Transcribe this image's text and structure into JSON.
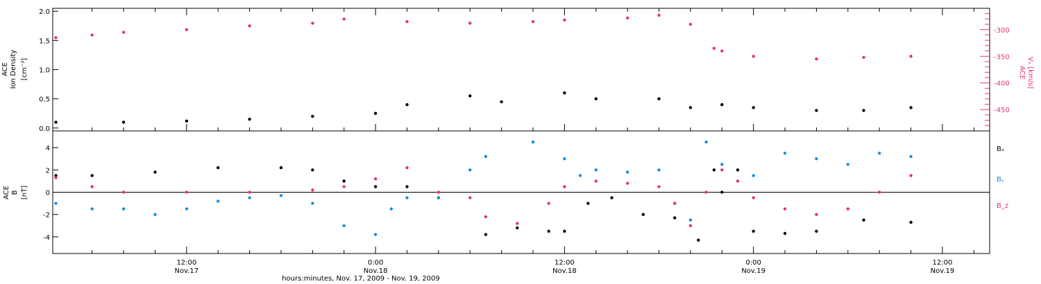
{
  "colors": {
    "black": "#000000",
    "pink": "#e8336a",
    "blue": "#1a8de0"
  },
  "x_axis": {
    "title": "hours:minutes, Nov. 17, 2009 - Nov. 19, 2009",
    "ticks": [
      {
        "time": "12:00",
        "day": "Nov.17",
        "hour": 12
      },
      {
        "time": "0:00",
        "day": "Nov.18",
        "hour": 24
      },
      {
        "time": "12:00",
        "day": "Nov.18",
        "hour": 36
      },
      {
        "time": "0:00",
        "day": "Nov.19",
        "hour": 48
      },
      {
        "time": "12:00",
        "day": "Nov.19",
        "hour": 60
      }
    ]
  },
  "chart_data": [
    {
      "type": "scatter",
      "panel": "top",
      "xlim_hours": [
        3.5,
        63
      ],
      "left_axis": {
        "label_line1": "ACE",
        "label_line2": "Ion Density",
        "unit": "[cm⁻³]",
        "ylim": [
          -0.05,
          2.05
        ],
        "ticks": [
          "0.0",
          "0.5",
          "1.0",
          "1.5",
          "2.0"
        ]
      },
      "right_axis": {
        "label_line1": "ACE",
        "label": "Vₓ [km/s]",
        "ylim": [
          -490,
          -260
        ],
        "ticks": [
          "-300",
          "-350",
          "-400",
          "-450"
        ]
      },
      "series": [
        {
          "color": "black",
          "axis": "left",
          "points": [
            [
              3.7,
              0.1
            ],
            [
              8,
              0.1
            ],
            [
              12,
              0.12
            ],
            [
              16,
              0.15
            ],
            [
              20,
              0.2
            ],
            [
              24,
              0.25
            ],
            [
              26,
              0.4
            ],
            [
              30,
              0.55
            ],
            [
              32,
              0.45
            ],
            [
              36,
              0.6
            ],
            [
              38,
              0.5
            ],
            [
              42,
              0.5
            ],
            [
              44,
              0.35
            ],
            [
              46,
              0.4
            ],
            [
              48,
              0.35
            ],
            [
              52,
              0.3
            ],
            [
              55,
              0.3
            ],
            [
              58,
              0.35
            ]
          ]
        },
        {
          "color": "pink",
          "axis": "right",
          "points": [
            [
              3.7,
              -315
            ],
            [
              6,
              -310
            ],
            [
              8,
              -305
            ],
            [
              12,
              -300
            ],
            [
              16,
              -293
            ],
            [
              20,
              -288
            ],
            [
              22,
              -280
            ],
            [
              26,
              -285
            ],
            [
              30,
              -288
            ],
            [
              34,
              -285
            ],
            [
              36,
              -282
            ],
            [
              40,
              -278
            ],
            [
              42,
              -273
            ],
            [
              44,
              -290
            ],
            [
              45.5,
              -335
            ],
            [
              46,
              -340
            ],
            [
              48,
              -350
            ],
            [
              52,
              -355
            ],
            [
              55,
              -352
            ],
            [
              58,
              -350
            ]
          ]
        }
      ]
    },
    {
      "type": "scatter",
      "panel": "bottom",
      "xlim_hours": [
        3.5,
        63
      ],
      "left_axis": {
        "label_line1": "ACE",
        "label_line2": "B",
        "unit": "[nT]",
        "ylim": [
          -5.5,
          5.5
        ],
        "ticks": [
          "-4",
          "-2",
          "0",
          "2",
          "4"
        ]
      },
      "series": [
        {
          "name": "Bₓ",
          "color": "black",
          "points": [
            [
              3.7,
              1.5
            ],
            [
              6,
              1.5
            ],
            [
              10,
              1.8
            ],
            [
              14,
              2.2
            ],
            [
              18,
              2.2
            ],
            [
              20,
              2.0
            ],
            [
              22,
              1.0
            ],
            [
              24,
              0.5
            ],
            [
              26,
              0.5
            ],
            [
              28,
              -0.5
            ],
            [
              31,
              -3.8
            ],
            [
              33,
              -3.2
            ],
            [
              35,
              -3.5
            ],
            [
              36,
              -3.5
            ],
            [
              37.5,
              -1.0
            ],
            [
              39,
              -0.5
            ],
            [
              41,
              -2.0
            ],
            [
              43,
              -2.3
            ],
            [
              44.5,
              -4.3
            ],
            [
              45.5,
              2.0
            ],
            [
              46,
              0
            ],
            [
              47,
              2.0
            ],
            [
              48,
              -3.5
            ],
            [
              50,
              -3.7
            ],
            [
              52,
              -3.5
            ],
            [
              55,
              -2.5
            ],
            [
              58,
              -2.7
            ]
          ]
        },
        {
          "name": "Bᵧ",
          "color": "blue",
          "points": [
            [
              3.7,
              -1.0
            ],
            [
              6,
              -1.5
            ],
            [
              8,
              -1.5
            ],
            [
              10,
              -2.0
            ],
            [
              12,
              -1.5
            ],
            [
              14,
              -0.8
            ],
            [
              16,
              -0.5
            ],
            [
              18,
              -0.3
            ],
            [
              20,
              -1.0
            ],
            [
              22,
              -3.0
            ],
            [
              24,
              -3.8
            ],
            [
              25,
              -1.5
            ],
            [
              26,
              -0.5
            ],
            [
              28,
              -0.5
            ],
            [
              30,
              2.0
            ],
            [
              31,
              3.2
            ],
            [
              34,
              4.5
            ],
            [
              36,
              3.0
            ],
            [
              37,
              1.5
            ],
            [
              38,
              2.0
            ],
            [
              40,
              1.8
            ],
            [
              42,
              2.0
            ],
            [
              43,
              -1.0
            ],
            [
              44,
              -2.5
            ],
            [
              45,
              4.5
            ],
            [
              46,
              2.5
            ],
            [
              47,
              1.0
            ],
            [
              48,
              1.5
            ],
            [
              50,
              3.5
            ],
            [
              52,
              3.0
            ],
            [
              54,
              2.5
            ],
            [
              56,
              3.5
            ],
            [
              58,
              3.2
            ]
          ]
        },
        {
          "name": "B_z",
          "color": "pink",
          "points": [
            [
              3.7,
              1.3
            ],
            [
              6,
              0.5
            ],
            [
              8,
              0
            ],
            [
              12,
              0
            ],
            [
              16,
              0
            ],
            [
              20,
              0.2
            ],
            [
              22,
              0.5
            ],
            [
              24,
              1.2
            ],
            [
              26,
              2.2
            ],
            [
              28,
              0
            ],
            [
              30,
              -0.5
            ],
            [
              31,
              -2.2
            ],
            [
              33,
              -2.8
            ],
            [
              35,
              -1.0
            ],
            [
              36,
              0.5
            ],
            [
              38,
              1.0
            ],
            [
              40,
              0.8
            ],
            [
              42,
              0.5
            ],
            [
              43,
              -1.0
            ],
            [
              44,
              -3.0
            ],
            [
              45,
              0
            ],
            [
              46,
              2.0
            ],
            [
              47,
              1.0
            ],
            [
              48,
              -0.5
            ],
            [
              50,
              -1.5
            ],
            [
              52,
              -2.0
            ],
            [
              54,
              -1.5
            ],
            [
              56,
              0
            ],
            [
              58,
              1.5
            ]
          ]
        }
      ]
    }
  ]
}
